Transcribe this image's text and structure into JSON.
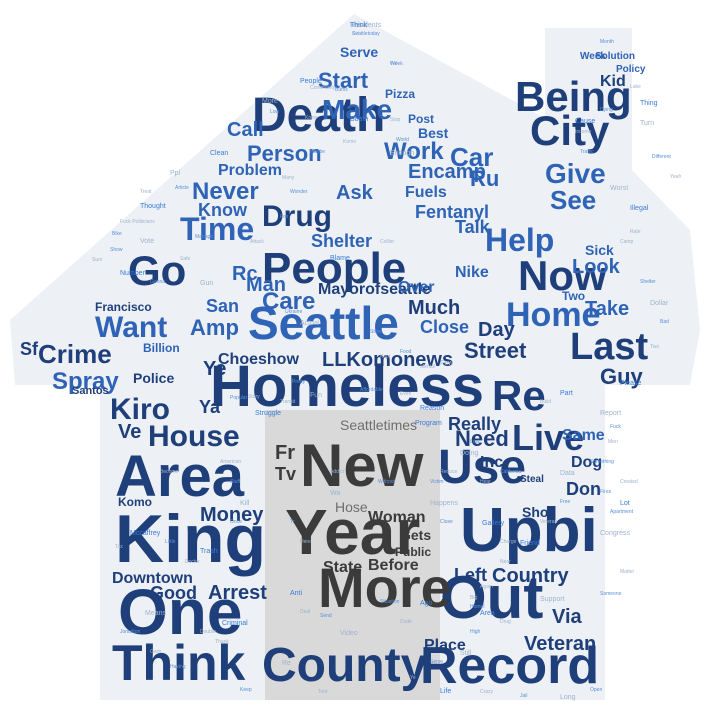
{
  "colors": {
    "background": "#ffffff",
    "house_fill": "#edf1f6",
    "door_fill": "#d9d9d9",
    "navy": "#1f3f7a",
    "blue": "#2f63b5",
    "light_blue": "#3a7bd5",
    "grey_text": "#3b3b3b"
  },
  "shape": "house",
  "words": {
    "big": {
      "homeless": "Homeless",
      "seattle": "Seattle",
      "death": "Death",
      "people": "People",
      "area": "Area",
      "king": "King",
      "one": "One",
      "think": "Think",
      "county": "County",
      "record": "Record",
      "re": "Re",
      "use": "Use",
      "upbi": "Upbi",
      "out": "Out",
      "new": "New",
      "year": "Year",
      "more": "More",
      "go": "Go",
      "city": "City",
      "being": "Being",
      "now": "Now",
      "last": "Last",
      "home": "Home",
      "live": "Live"
    },
    "medium": {
      "make": "Make",
      "start": "Start",
      "time": "Time",
      "want": "Want",
      "crime": "Crime",
      "spray": "Spray",
      "kiro": "Kiro",
      "house": "House",
      "drug": "Drug",
      "person": "Person",
      "work": "Work",
      "car": "Car",
      "give": "Give",
      "help": "Help",
      "see": "See",
      "fentanyl": "Fentanyl",
      "need": "Need",
      "downtown": "Downtown",
      "money": "Money",
      "arrest": "Arrest",
      "good": "Good",
      "country": "Country",
      "left": "Left",
      "veteran": "Veteran",
      "place": "Place",
      "care": "Care",
      "man": "Man",
      "amp": "Amp",
      "san": "San",
      "ve": "Ve",
      "never": "Never",
      "call": "Call",
      "know": "Know",
      "encamp": "Encamp",
      "kid": "Kid",
      "guy": "Guy",
      "street": "Street",
      "really": "Really",
      "day": "Day",
      "much": "Much",
      "mayorofseattle": "Mayorofseattle",
      "llkomonews": "LLKomonews",
      "choeshow": "Choeshow",
      "shelter": "Shelter",
      "ask": "Ask",
      "talk": "Talk",
      "take": "Take",
      "look": "Look",
      "sick": "Sick",
      "nike": "Nike",
      "fuels": "Fuels",
      "ru": "Ru",
      "komo": "Komo",
      "hose": "Hose",
      "woman": "Woman",
      "before": "Before",
      "state": "State",
      "gets": "Gets",
      "public": "Public",
      "seattletimes": "Seattletimes",
      "fr": "Fr",
      "tv": "Tv",
      "ya": "Ya",
      "ye": "Ye",
      "police": "Police",
      "billion": "Billion",
      "francisco": "Francisco",
      "sf": "Sf",
      "santos": "Santos",
      "don": "Don",
      "dog": "Dog",
      "same": "Same",
      "inc": "Inc",
      "via": "Via",
      "close": "Close",
      "two": "Two",
      "problem": "Problem",
      "over": "Over",
      "rc": "Rc",
      "shot": "Shot",
      "steal": "Steal",
      "post": "Post",
      "best": "Best",
      "serve": "Serve",
      "pizza": "Pizza",
      "week": "Week",
      "solution": "Solution",
      "policy": "Policy"
    },
    "small": [
      "Residents",
      "Seattletoday",
      "Tell",
      "People",
      "Community",
      "Bums",
      "More",
      "Low",
      "Knew",
      "South",
      "Stop",
      "World",
      "Enough",
      "Maybe",
      "Komo",
      "Clean",
      "Many",
      "Wonder",
      "Ppl",
      "Article",
      "Treat",
      "Thought",
      "Fuck Politicians",
      "Bike",
      "Vote",
      "Show",
      "Sure",
      "Number",
      "Safe",
      "Manage",
      "Gun",
      "Gonna",
      "Story",
      "Struggle",
      "Transit",
      "Pretty",
      "Fun",
      "Affordable",
      "Even",
      "Reason",
      "Addict",
      "Without",
      "Wa",
      "Tr",
      "Here",
      "Anti",
      "Deal",
      "Situation",
      "Video",
      "Send",
      "Dude",
      "Ago",
      "Gwin",
      "Having",
      "Re",
      "Keep",
      "Tent",
      "Life",
      "Crazy",
      "Jail",
      "Long",
      "Open",
      "Drug",
      "Area",
      "Big",
      "Homel",
      "Support",
      "Someone",
      "Matter",
      "Please",
      "Two",
      "Bad",
      "Dollar",
      "Shelter",
      "Camp",
      "Illegal",
      "Rate",
      "Dying",
      "Turn",
      "Different",
      "Yeah",
      "Cause",
      "Income",
      "Traffic",
      "Worst",
      "Month",
      "Lake",
      "Thing",
      "Kept",
      "Food",
      "Few",
      "Fox",
      "Attack",
      "Blame",
      "Collier",
      "Ukraine",
      "Actual",
      "Store",
      "Mental",
      "Program",
      "Reduce",
      "Victim",
      "Happens",
      "Close",
      "Hear",
      "Gallery",
      "Charge",
      "California",
      "Congress",
      "Apartment",
      "Double",
      "Criminal",
      "Thank",
      "Jontalton",
      "Means",
      "Little",
      "Doctor",
      "Trash",
      "American",
      "Stuff",
      "Kill",
      "Once",
      "Tax",
      "Mccaffrey",
      "Become",
      "Popular",
      "Report",
      "Fuck",
      "Build",
      "Part",
      "Men",
      "Something",
      "Doing",
      "Lost",
      "Near",
      "Friend",
      "Veteran",
      "Free",
      "Data",
      "Fires",
      "Created",
      "Lot",
      "Again",
      "High",
      "Still",
      "Serve",
      "Ye",
      "Think",
      "Kid",
      "Week"
    ]
  }
}
